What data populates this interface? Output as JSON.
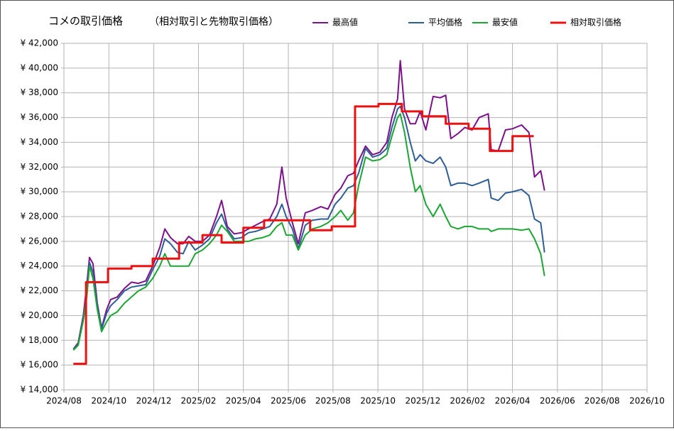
{
  "chart_data": {
    "type": "line",
    "title": "コメの取引価格",
    "subtitle": "（相対取引と先物取引価格）",
    "grid": true,
    "legend": "top",
    "xlim": [
      2024.583,
      2026.75
    ],
    "xticks": [
      {
        "value": 2024.583,
        "label": "2024/08"
      },
      {
        "value": 2024.75,
        "label": "2024/10"
      },
      {
        "value": 2024.917,
        "label": "2024/12"
      },
      {
        "value": 2025.083,
        "label": "2025/02"
      },
      {
        "value": 2025.25,
        "label": "2025/04"
      },
      {
        "value": 2025.417,
        "label": "2025/06"
      },
      {
        "value": 2025.583,
        "label": "2025/08"
      },
      {
        "value": 2025.75,
        "label": "2025/10"
      },
      {
        "value": 2025.917,
        "label": "2025/12"
      },
      {
        "value": 2026.083,
        "label": "2026/02"
      },
      {
        "value": 2026.25,
        "label": "2026/04"
      },
      {
        "value": 2026.417,
        "label": "2026/06"
      },
      {
        "value": 2026.583,
        "label": "2026/08"
      },
      {
        "value": 2026.75,
        "label": "2026/10"
      }
    ],
    "ylim": [
      14000,
      42000
    ],
    "yticks": [
      {
        "value": 14000,
        "label": "¥ 14,000"
      },
      {
        "value": 16000,
        "label": "¥ 16,000"
      },
      {
        "value": 18000,
        "label": "¥ 18,000"
      },
      {
        "value": 20000,
        "label": "¥ 20,000"
      },
      {
        "value": 22000,
        "label": "¥ 22,000"
      },
      {
        "value": 24000,
        "label": "¥ 24,000"
      },
      {
        "value": 26000,
        "label": "¥ 26,000"
      },
      {
        "value": 28000,
        "label": "¥ 28,000"
      },
      {
        "value": 30000,
        "label": "¥ 30,000"
      },
      {
        "value": 32000,
        "label": "¥ 32,000"
      },
      {
        "value": 34000,
        "label": "¥ 34,000"
      },
      {
        "value": 36000,
        "label": "¥ 36,000"
      },
      {
        "value": 38000,
        "label": "¥ 38,000"
      },
      {
        "value": 40000,
        "label": "¥ 40,000"
      },
      {
        "value": 42000,
        "label": "¥ 42,000"
      }
    ],
    "series": [
      {
        "name": "最高値",
        "color": "#7b1289",
        "width": 2,
        "x": [
          2024.618,
          2024.636,
          2024.655,
          2024.668,
          2024.678,
          2024.691,
          2024.707,
          2024.723,
          2024.742,
          2024.757,
          2024.781,
          2024.808,
          2024.834,
          2024.86,
          2024.887,
          2024.913,
          2024.939,
          2024.958,
          2024.979,
          2025.005,
          2025.026,
          2025.047,
          2025.071,
          2025.098,
          2025.124,
          2025.15,
          2025.169,
          2025.19,
          2025.216,
          2025.243,
          2025.269,
          2025.295,
          2025.322,
          2025.348,
          2025.374,
          2025.393,
          2025.409,
          2025.432,
          2025.454,
          2025.48,
          2025.506,
          2025.538,
          2025.564,
          2025.591,
          2025.612,
          2025.638,
          2025.659,
          2025.678,
          2025.704,
          2025.73,
          2025.757,
          2025.783,
          2025.802,
          2025.823,
          2025.833,
          2025.849,
          2025.87,
          2025.889,
          2025.907,
          2025.928,
          2025.955,
          2025.981,
          2026.002,
          2026.021,
          2026.047,
          2026.073,
          2026.1,
          2026.126,
          2026.16,
          2026.171,
          2026.197,
          2026.224,
          2026.25,
          2026.284,
          2026.311,
          2026.332,
          2026.355,
          2026.369
        ],
        "values": [
          17300,
          17800,
          20000,
          22500,
          24700,
          24200,
          21000,
          19000,
          20500,
          21300,
          21500,
          22200,
          22700,
          22600,
          22800,
          24000,
          25500,
          27000,
          26300,
          25800,
          25800,
          26400,
          26000,
          26000,
          26500,
          28000,
          29300,
          27200,
          26600,
          26700,
          27000,
          27300,
          27600,
          27800,
          29000,
          32000,
          29500,
          27500,
          25800,
          28300,
          28500,
          28800,
          28600,
          29800,
          30300,
          31300,
          31500,
          32500,
          33700,
          33000,
          33200,
          34000,
          36000,
          37500,
          40600,
          36700,
          35500,
          35500,
          36500,
          35000,
          37700,
          37600,
          37800,
          34300,
          34700,
          35200,
          35000,
          36000,
          36300,
          33400,
          33300,
          35000,
          35100,
          35400,
          34800,
          31200,
          31700,
          30100
        ]
      },
      {
        "name": "平均価格",
        "color": "#2e5e95",
        "width": 2,
        "x": [
          2024.618,
          2024.636,
          2024.655,
          2024.668,
          2024.678,
          2024.691,
          2024.707,
          2024.723,
          2024.742,
          2024.757,
          2024.781,
          2024.808,
          2024.834,
          2024.86,
          2024.887,
          2024.913,
          2024.939,
          2024.958,
          2024.979,
          2025.005,
          2025.026,
          2025.047,
          2025.071,
          2025.098,
          2025.124,
          2025.15,
          2025.169,
          2025.19,
          2025.216,
          2025.243,
          2025.269,
          2025.295,
          2025.322,
          2025.348,
          2025.374,
          2025.393,
          2025.409,
          2025.432,
          2025.454,
          2025.48,
          2025.506,
          2025.538,
          2025.564,
          2025.591,
          2025.612,
          2025.638,
          2025.659,
          2025.678,
          2025.704,
          2025.73,
          2025.757,
          2025.783,
          2025.802,
          2025.823,
          2025.833,
          2025.849,
          2025.87,
          2025.889,
          2025.907,
          2025.928,
          2025.955,
          2025.981,
          2026.002,
          2026.021,
          2026.047,
          2026.073,
          2026.1,
          2026.126,
          2026.16,
          2026.171,
          2026.197,
          2026.224,
          2026.25,
          2026.284,
          2026.311,
          2026.332,
          2026.355,
          2026.369
        ],
        "values": [
          17300,
          17700,
          19800,
          22000,
          24300,
          23500,
          20800,
          18900,
          20200,
          20800,
          21300,
          22000,
          22300,
          22400,
          22500,
          23700,
          24800,
          26200,
          25800,
          25100,
          25000,
          26000,
          25300,
          25700,
          26200,
          27500,
          28200,
          27000,
          26200,
          26300,
          26700,
          26800,
          27000,
          27200,
          28000,
          29000,
          28000,
          27000,
          25400,
          27300,
          27700,
          27800,
          27800,
          29000,
          29500,
          30300,
          30500,
          31500,
          33500,
          32800,
          33000,
          33500,
          35200,
          36700,
          36900,
          36000,
          34000,
          32500,
          33000,
          32500,
          32300,
          32800,
          32000,
          30500,
          30700,
          30700,
          30500,
          30700,
          31000,
          29500,
          29300,
          29900,
          30000,
          30200,
          29700,
          27800,
          27500,
          25100
        ]
      },
      {
        "name": "最安値",
        "color": "#1ba533",
        "width": 2,
        "x": [
          2024.618,
          2024.636,
          2024.655,
          2024.668,
          2024.678,
          2024.691,
          2024.707,
          2024.723,
          2024.742,
          2024.757,
          2024.781,
          2024.808,
          2024.834,
          2024.86,
          2024.887,
          2024.913,
          2024.939,
          2024.958,
          2024.979,
          2025.005,
          2025.026,
          2025.047,
          2025.071,
          2025.098,
          2025.124,
          2025.15,
          2025.169,
          2025.19,
          2025.216,
          2025.243,
          2025.269,
          2025.295,
          2025.322,
          2025.348,
          2025.374,
          2025.393,
          2025.409,
          2025.432,
          2025.454,
          2025.48,
          2025.506,
          2025.538,
          2025.564,
          2025.591,
          2025.612,
          2025.638,
          2025.659,
          2025.678,
          2025.704,
          2025.73,
          2025.757,
          2025.783,
          2025.802,
          2025.823,
          2025.833,
          2025.849,
          2025.87,
          2025.889,
          2025.907,
          2025.928,
          2025.955,
          2025.981,
          2026.002,
          2026.021,
          2026.047,
          2026.073,
          2026.1,
          2026.126,
          2026.16,
          2026.171,
          2026.197,
          2026.224,
          2026.25,
          2026.284,
          2026.311,
          2026.332,
          2026.355,
          2026.369
        ],
        "values": [
          17200,
          17600,
          19600,
          21500,
          24000,
          23000,
          20500,
          18700,
          19500,
          20000,
          20300,
          21000,
          21500,
          22000,
          22300,
          23000,
          24000,
          25000,
          24000,
          24000,
          24000,
          24000,
          25000,
          25300,
          25800,
          26500,
          27300,
          26800,
          26000,
          26000,
          26000,
          26200,
          26300,
          26500,
          27200,
          27500,
          26500,
          26500,
          25300,
          26500,
          27000,
          27200,
          27500,
          28000,
          28500,
          27700,
          28300,
          30500,
          32800,
          32500,
          32600,
          33000,
          34500,
          36000,
          36300,
          34800,
          32000,
          30000,
          30500,
          29000,
          28000,
          29000,
          28000,
          27200,
          27000,
          27200,
          27200,
          27000,
          27000,
          26800,
          27000,
          27000,
          27000,
          26900,
          27000,
          26200,
          25000,
          23200
        ]
      },
      {
        "name": "相対取引価格",
        "color": "#ee1111",
        "width": 3,
        "x": [
          2024.618,
          2024.665,
          2024.665,
          2024.747,
          2024.747,
          2024.834,
          2024.834,
          2024.913,
          2024.913,
          2025.011,
          2025.011,
          2025.098,
          2025.098,
          2025.169,
          2025.169,
          2025.25,
          2025.25,
          2025.327,
          2025.327,
          2025.498,
          2025.498,
          2025.578,
          2025.578,
          2025.665,
          2025.665,
          2025.752,
          2025.752,
          2025.839,
          2025.839,
          2025.915,
          2025.915,
          2026.002,
          2026.002,
          2026.087,
          2026.087,
          2026.166,
          2026.166,
          2026.25,
          2026.25,
          2026.329
        ],
        "values": [
          16100,
          16100,
          22700,
          22700,
          23800,
          23800,
          24000,
          24000,
          24600,
          24600,
          25900,
          25900,
          26500,
          26500,
          25900,
          25900,
          27100,
          27100,
          27700,
          27700,
          26900,
          26900,
          27200,
          27200,
          36900,
          36900,
          37100,
          37100,
          36500,
          36500,
          36100,
          36100,
          35500,
          35500,
          35100,
          35100,
          33300,
          33300,
          34500,
          34500
        ]
      }
    ]
  }
}
